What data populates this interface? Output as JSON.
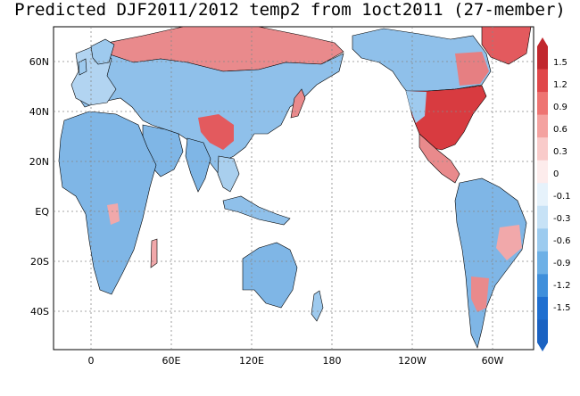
{
  "title": "Predicted DJF2011/2012 temp2 from 1oct2011 (27-member)",
  "map": {
    "lat_labels": [
      "60N",
      "40N",
      "20N",
      "EQ",
      "20S",
      "40S"
    ],
    "lon_labels": [
      "0",
      "60E",
      "120E",
      "180",
      "120W",
      "60W"
    ]
  },
  "colorbar": {
    "labels": [
      "1.5",
      "1.2",
      "0.9",
      "0.6",
      "0.3",
      "0",
      "-0.1",
      "-0.3",
      "-0.6",
      "-0.9",
      "-1.2",
      "-1.5"
    ],
    "colors": [
      "#c1272d",
      "#e0474a",
      "#ee7472",
      "#f4a2a0",
      "#f9cbca",
      "#fdecec",
      "#e6f2fb",
      "#c7e2f6",
      "#9ccbef",
      "#6db0e6",
      "#3f8fdb",
      "#1f6fd0",
      "#1a62c2"
    ]
  },
  "colors": {
    "warm_strong": "#c62e35",
    "warm": "#e7787b",
    "warm_light": "#f2b6b6",
    "cool_light": "#b9d7f1",
    "cool": "#7fb6e6",
    "cool_strong": "#3c87d6",
    "ocean": "#ffffff",
    "grid": "#888888"
  }
}
